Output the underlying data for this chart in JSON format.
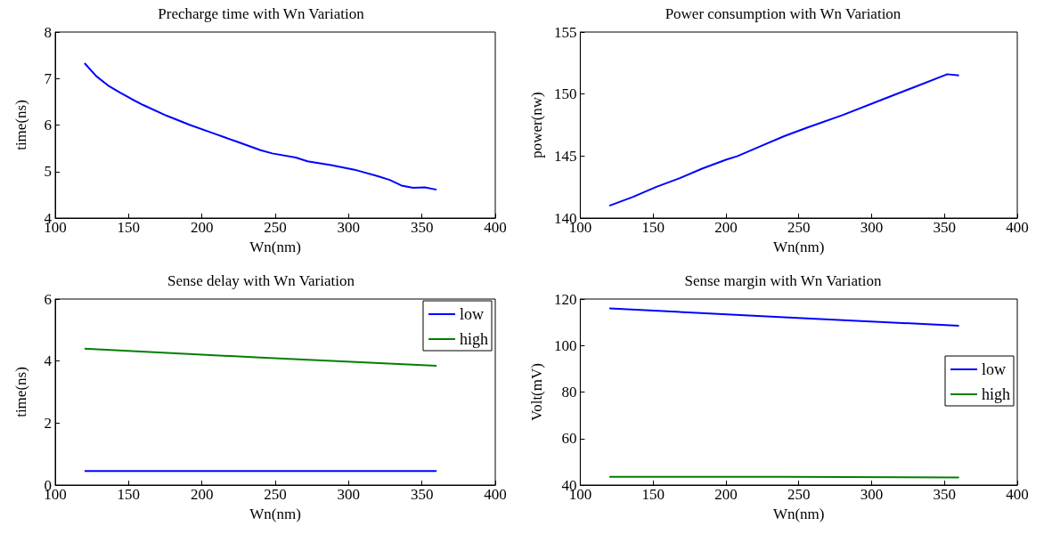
{
  "chart_data": [
    {
      "type": "line",
      "title": "Precharge time with Wn Variation",
      "xlabel": "Wn(nm)",
      "ylabel": "time(ns)",
      "xlim": [
        100,
        400
      ],
      "xticks": [
        100,
        150,
        200,
        250,
        300,
        350,
        400
      ],
      "ylim": [
        4,
        8
      ],
      "yticks": [
        4,
        5,
        6,
        7,
        8
      ],
      "grid": false,
      "legend": false,
      "marker": "none",
      "line_style": "solid",
      "series": [
        {
          "color": "#0000ff",
          "x": [
            120,
            128,
            136,
            144,
            152,
            160,
            176,
            192,
            208,
            224,
            240,
            248,
            264,
            272,
            288,
            304,
            320,
            328,
            336,
            344,
            352,
            360
          ],
          "values": [
            7.33,
            7.05,
            6.85,
            6.7,
            6.56,
            6.43,
            6.2,
            6.0,
            5.82,
            5.64,
            5.46,
            5.39,
            5.3,
            5.22,
            5.14,
            5.04,
            4.9,
            4.82,
            4.7,
            4.65,
            4.66,
            4.61
          ]
        }
      ]
    },
    {
      "type": "line",
      "title": "Power consumption with Wn Variation",
      "xlabel": "Wn(nm)",
      "ylabel": "power(nw)",
      "xlim": [
        100,
        400
      ],
      "xticks": [
        100,
        150,
        200,
        250,
        300,
        350,
        400
      ],
      "ylim": [
        140,
        155
      ],
      "yticks": [
        140,
        145,
        150,
        155
      ],
      "grid": false,
      "legend": false,
      "marker": "none",
      "line_style": "solid",
      "series": [
        {
          "color": "#0000ff",
          "x": [
            120,
            136,
            152,
            168,
            184,
            200,
            208,
            224,
            240,
            256,
            280,
            304,
            328,
            352,
            360
          ],
          "values": [
            141.0,
            141.7,
            142.5,
            143.2,
            144.0,
            144.7,
            145.0,
            145.8,
            146.6,
            147.3,
            148.3,
            149.4,
            150.5,
            151.6,
            151.5
          ]
        }
      ]
    },
    {
      "type": "line",
      "title": "Sense delay with Wn Variation",
      "xlabel": "Wn(nm)",
      "ylabel": "time(ns)",
      "xlim": [
        100,
        400
      ],
      "xticks": [
        100,
        150,
        200,
        250,
        300,
        350,
        400
      ],
      "ylim": [
        0,
        6
      ],
      "yticks": [
        0,
        2,
        4,
        6
      ],
      "grid": false,
      "legend": "top right",
      "marker": "none",
      "line_style": "solid",
      "series": [
        {
          "name": "low",
          "color": "#0000ff",
          "x": [
            120,
            240,
            360
          ],
          "values": [
            0.45,
            0.45,
            0.45
          ]
        },
        {
          "name": "high",
          "color": "#008000",
          "x": [
            120,
            240,
            360
          ],
          "values": [
            4.4,
            4.11,
            3.85
          ]
        }
      ]
    },
    {
      "type": "line",
      "title": "Sense margin with Wn Variation",
      "xlabel": "Wn(nm)",
      "ylabel": "Volt(mV)",
      "xlim": [
        100,
        400
      ],
      "xticks": [
        100,
        150,
        200,
        250,
        300,
        350,
        400
      ],
      "ylim": [
        40,
        120
      ],
      "yticks": [
        40,
        60,
        80,
        100,
        120
      ],
      "grid": false,
      "legend": "right",
      "marker": "none",
      "line_style": "solid",
      "series": [
        {
          "name": "low",
          "color": "#0000ff",
          "x": [
            120,
            240,
            360
          ],
          "values": [
            116,
            112.2,
            108.5
          ]
        },
        {
          "name": "high",
          "color": "#008000",
          "x": [
            120,
            240,
            360
          ],
          "values": [
            43.5,
            43.5,
            43.3
          ]
        }
      ]
    }
  ]
}
